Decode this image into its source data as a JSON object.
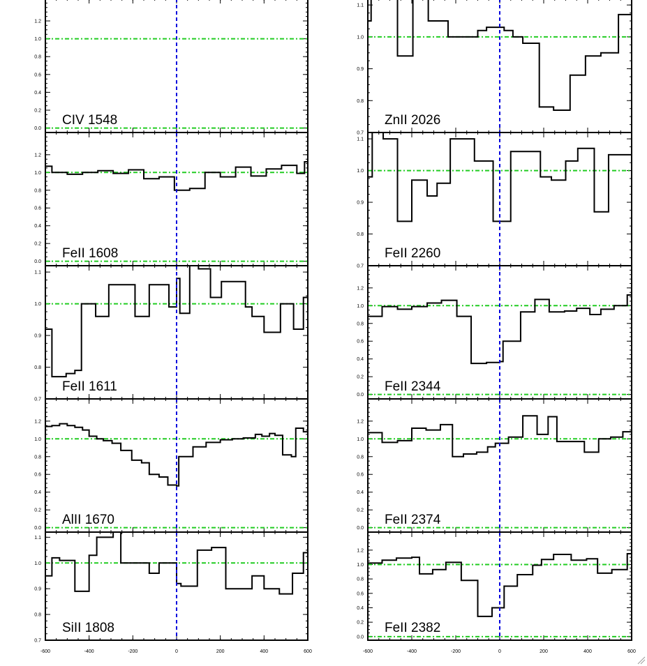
{
  "figure": {
    "colors": {
      "spectrum": "#000000",
      "continuum": "#22cc22",
      "zero_velocity": "#0000dd",
      "axes": "#000000",
      "background": "#ffffff"
    },
    "x_tick_labels": [
      "-600",
      "-400",
      "-200",
      "0",
      "200",
      "400",
      "600"
    ]
  },
  "chart_data": [
    {
      "type": "line",
      "step": true,
      "column": "left",
      "row": 0,
      "label": "CIV 1548",
      "xlim": [
        -600,
        600
      ],
      "ylim": [
        -0.05,
        1.45
      ],
      "yticks": [
        0.0,
        0.2,
        0.4,
        0.6,
        0.8,
        1.0,
        1.2
      ],
      "ytick_labels": [
        "0.0",
        "0.2",
        "0.4",
        "0.6",
        "0.8",
        "1.0",
        "1.2"
      ],
      "reference_lines": {
        "y": [
          1.0,
          0.0
        ],
        "x": [
          0
        ]
      },
      "x": [],
      "y": []
    },
    {
      "type": "line",
      "step": true,
      "column": "left",
      "row": 1,
      "label": "FeII 1608",
      "xlim": [
        -600,
        600
      ],
      "ylim": [
        -0.05,
        1.45
      ],
      "yticks": [
        0.0,
        0.2,
        0.4,
        0.6,
        0.8,
        1.0,
        1.2
      ],
      "ytick_labels": [
        "0.0",
        "0.2",
        "0.4",
        "0.6",
        "0.8",
        "1.0",
        "1.2"
      ],
      "reference_lines": {
        "y": [
          1.0,
          0.0
        ],
        "x": [
          0
        ]
      },
      "x": [
        -600,
        -570,
        -535,
        -500,
        -465,
        -430,
        -395,
        -360,
        -325,
        -290,
        -255,
        -220,
        -185,
        -150,
        -115,
        -80,
        -45,
        -10,
        25,
        60,
        95,
        130,
        165,
        200,
        235,
        270,
        305,
        340,
        375,
        410,
        445,
        480,
        515,
        550,
        585
      ],
      "y": [
        1.07,
        1.0,
        1.0,
        0.98,
        0.98,
        1.0,
        1.0,
        1.02,
        1.02,
        0.99,
        0.99,
        1.03,
        1.03,
        0.93,
        0.93,
        0.95,
        0.95,
        0.8,
        0.8,
        0.82,
        0.82,
        1.0,
        1.0,
        0.95,
        0.95,
        1.06,
        1.06,
        0.96,
        0.96,
        1.04,
        1.04,
        1.08,
        1.08,
        0.99,
        1.12
      ]
    },
    {
      "type": "line",
      "step": true,
      "column": "left",
      "row": 2,
      "label": "FeII 1611",
      "xlim": [
        -600,
        600
      ],
      "ylim": [
        0.7,
        1.12
      ],
      "yticks": [
        0.7,
        0.8,
        0.9,
        1.0,
        1.1
      ],
      "ytick_labels": [
        "0.7",
        "0.8",
        "0.9",
        "1.0",
        "1.1"
      ],
      "reference_lines": {
        "y": [
          1.0
        ],
        "x": [
          0
        ]
      },
      "x": [
        -600,
        -570,
        -505,
        -465,
        -435,
        -410,
        -370,
        -335,
        -310,
        -250,
        -190,
        -125,
        -95,
        -35,
        0,
        15,
        60,
        100,
        155,
        205,
        255,
        315,
        345,
        400,
        475,
        535,
        580,
        600
      ],
      "y": [
        0.92,
        0.77,
        0.78,
        0.79,
        1.0,
        1.0,
        0.96,
        0.96,
        1.06,
        1.06,
        0.96,
        1.06,
        1.06,
        0.99,
        1.08,
        0.97,
        1.15,
        1.11,
        1.02,
        1.07,
        1.07,
        0.99,
        0.96,
        0.91,
        1.0,
        0.92,
        1.02,
        1.02
      ]
    },
    {
      "type": "line",
      "step": true,
      "column": "left",
      "row": 3,
      "label": "AlII 1670",
      "xlim": [
        -600,
        600
      ],
      "ylim": [
        -0.05,
        1.45
      ],
      "yticks": [
        0.0,
        0.2,
        0.4,
        0.6,
        0.8,
        1.0,
        1.2
      ],
      "ytick_labels": [
        "0.0",
        "0.2",
        "0.4",
        "0.6",
        "0.8",
        "1.0",
        "1.2"
      ],
      "reference_lines": {
        "y": [
          1.0,
          0.0
        ],
        "x": [
          0
        ]
      },
      "x": [
        -600,
        -570,
        -535,
        -500,
        -465,
        -430,
        -400,
        -365,
        -335,
        -295,
        -255,
        -205,
        -160,
        -125,
        -80,
        -40,
        0,
        10,
        75,
        135,
        200,
        255,
        305,
        360,
        390,
        425,
        450,
        485,
        525,
        545,
        580
      ],
      "y": [
        1.14,
        1.15,
        1.17,
        1.15,
        1.13,
        1.1,
        1.03,
        1.0,
        0.98,
        0.95,
        0.87,
        0.76,
        0.73,
        0.6,
        0.57,
        0.48,
        0.47,
        0.8,
        0.91,
        0.96,
        0.99,
        1.0,
        1.01,
        1.05,
        1.03,
        1.06,
        1.04,
        0.82,
        0.8,
        1.12,
        1.08
      ]
    },
    {
      "type": "line",
      "step": true,
      "column": "left",
      "row": 4,
      "label": "SiII 1808",
      "xlim": [
        -600,
        600
      ],
      "ylim": [
        0.7,
        1.12
      ],
      "yticks": [
        0.7,
        0.8,
        0.9,
        1.0,
        1.1
      ],
      "ytick_labels": [
        "0.7",
        "0.8",
        "0.9",
        "1.0",
        "1.1"
      ],
      "reference_lines": {
        "y": [
          1.0
        ],
        "x": [
          0
        ]
      },
      "x": [
        -600,
        -570,
        -535,
        -465,
        -400,
        -365,
        -290,
        -255,
        -185,
        -125,
        -80,
        -55,
        0,
        20,
        95,
        160,
        225,
        300,
        345,
        400,
        470,
        530,
        580,
        600
      ],
      "y": [
        0.95,
        1.02,
        1.01,
        0.89,
        1.03,
        1.1,
        1.12,
        1.0,
        1.0,
        0.96,
        1.0,
        1.0,
        0.92,
        0.91,
        1.05,
        1.06,
        0.9,
        0.9,
        0.95,
        0.9,
        0.88,
        0.96,
        1.04,
        1.04
      ]
    },
    {
      "type": "line",
      "step": true,
      "column": "right",
      "row": 0,
      "label": "ZnII 2026",
      "xlim": [
        -600,
        600
      ],
      "ylim": [
        0.7,
        1.12
      ],
      "yticks": [
        0.7,
        0.8,
        0.9,
        1.0,
        1.1
      ],
      "ytick_labels": [
        "0.7",
        "0.8",
        "0.9",
        "1.0",
        "1.1"
      ],
      "reference_lines": {
        "y": [
          1.0
        ],
        "x": [
          0
        ]
      },
      "x": [
        -600,
        -585,
        -530,
        -465,
        -395,
        -325,
        -235,
        -165,
        -100,
        -60,
        -25,
        20,
        60,
        105,
        180,
        245,
        320,
        390,
        460,
        540,
        590
      ],
      "y": [
        1.05,
        1.15,
        1.2,
        0.94,
        1.2,
        1.05,
        1.0,
        1.0,
        1.02,
        1.03,
        1.03,
        1.02,
        1.0,
        0.98,
        0.78,
        0.77,
        0.88,
        0.94,
        0.95,
        1.07,
        1.07
      ]
    },
    {
      "type": "line",
      "step": true,
      "column": "right",
      "row": 1,
      "label": "FeII 2260",
      "xlim": [
        -600,
        600
      ],
      "ylim": [
        0.7,
        1.12
      ],
      "yticks": [
        0.7,
        0.8,
        0.9,
        1.0,
        1.1
      ],
      "ytick_labels": [
        "0.7",
        "0.8",
        "0.9",
        "1.0",
        "1.1"
      ],
      "reference_lines": {
        "y": [
          1.0
        ],
        "x": [
          0
        ]
      },
      "x": [
        -600,
        -580,
        -530,
        -465,
        -400,
        -330,
        -285,
        -225,
        -160,
        -115,
        -85,
        -30,
        0,
        50,
        110,
        185,
        235,
        300,
        355,
        430,
        495,
        560,
        580
      ],
      "y": [
        0.98,
        1.13,
        1.1,
        0.84,
        0.97,
        0.92,
        0.96,
        1.1,
        1.1,
        1.03,
        1.03,
        0.84,
        0.84,
        1.06,
        1.06,
        0.98,
        0.97,
        1.03,
        1.07,
        0.87,
        1.05,
        1.05,
        1.05
      ]
    },
    {
      "type": "line",
      "step": true,
      "column": "right",
      "row": 2,
      "label": "FeII 2344",
      "xlim": [
        -600,
        600
      ],
      "ylim": [
        -0.05,
        1.45
      ],
      "yticks": [
        0.0,
        0.2,
        0.4,
        0.6,
        0.8,
        1.0,
        1.2
      ],
      "ytick_labels": [
        "0.0",
        "0.2",
        "0.4",
        "0.6",
        "0.8",
        "1.0",
        "1.2"
      ],
      "reference_lines": {
        "y": [
          1.0,
          0.0
        ],
        "x": [
          0
        ]
      },
      "x": [
        -600,
        -535,
        -465,
        -400,
        -330,
        -265,
        -195,
        -130,
        -60,
        0,
        15,
        95,
        160,
        225,
        295,
        350,
        410,
        460,
        520,
        580,
        600
      ],
      "y": [
        0.88,
        0.99,
        0.96,
        0.99,
        1.03,
        1.06,
        0.88,
        0.35,
        0.36,
        0.37,
        0.6,
        0.93,
        1.07,
        0.93,
        0.94,
        0.97,
        0.9,
        0.96,
        1.0,
        1.12,
        1.12
      ]
    },
    {
      "type": "line",
      "step": true,
      "column": "right",
      "row": 3,
      "label": "FeII 2374",
      "xlim": [
        -600,
        600
      ],
      "ylim": [
        -0.05,
        1.45
      ],
      "yticks": [
        0.0,
        0.2,
        0.4,
        0.6,
        0.8,
        1.0,
        1.2
      ],
      "ytick_labels": [
        "0.0",
        "0.2",
        "0.4",
        "0.6",
        "0.8",
        "1.0",
        "1.2"
      ],
      "reference_lines": {
        "y": [
          1.0,
          0.0
        ],
        "x": [
          0
        ]
      },
      "x": [
        -600,
        -535,
        -465,
        -400,
        -335,
        -270,
        -215,
        -165,
        -105,
        -55,
        -20,
        40,
        105,
        170,
        220,
        260,
        330,
        385,
        450,
        505,
        560,
        600
      ],
      "y": [
        1.07,
        0.96,
        0.98,
        1.12,
        1.1,
        1.16,
        0.8,
        0.83,
        0.85,
        0.91,
        0.95,
        1.02,
        1.26,
        1.05,
        1.25,
        0.97,
        0.97,
        0.85,
        1.0,
        1.02,
        1.08,
        1.08
      ]
    },
    {
      "type": "line",
      "step": true,
      "column": "right",
      "row": 4,
      "label": "FeII 2382",
      "xlim": [
        -600,
        600
      ],
      "ylim": [
        -0.05,
        1.45
      ],
      "yticks": [
        0.0,
        0.2,
        0.4,
        0.6,
        0.8,
        1.0,
        1.2
      ],
      "ytick_labels": [
        "0.0",
        "0.2",
        "0.4",
        "0.6",
        "0.8",
        "1.0",
        "1.2"
      ],
      "reference_lines": {
        "y": [
          1.0,
          0.0
        ],
        "x": [
          0
        ]
      },
      "x": [
        -600,
        -535,
        -470,
        -400,
        -365,
        -305,
        -245,
        -175,
        -100,
        -35,
        20,
        80,
        150,
        190,
        245,
        325,
        395,
        445,
        510,
        580
      ],
      "y": [
        1.02,
        1.06,
        1.09,
        1.1,
        0.87,
        0.93,
        1.03,
        0.78,
        0.28,
        0.4,
        0.7,
        0.86,
        0.99,
        1.07,
        1.14,
        1.06,
        1.08,
        0.88,
        0.93,
        1.15
      ]
    }
  ]
}
